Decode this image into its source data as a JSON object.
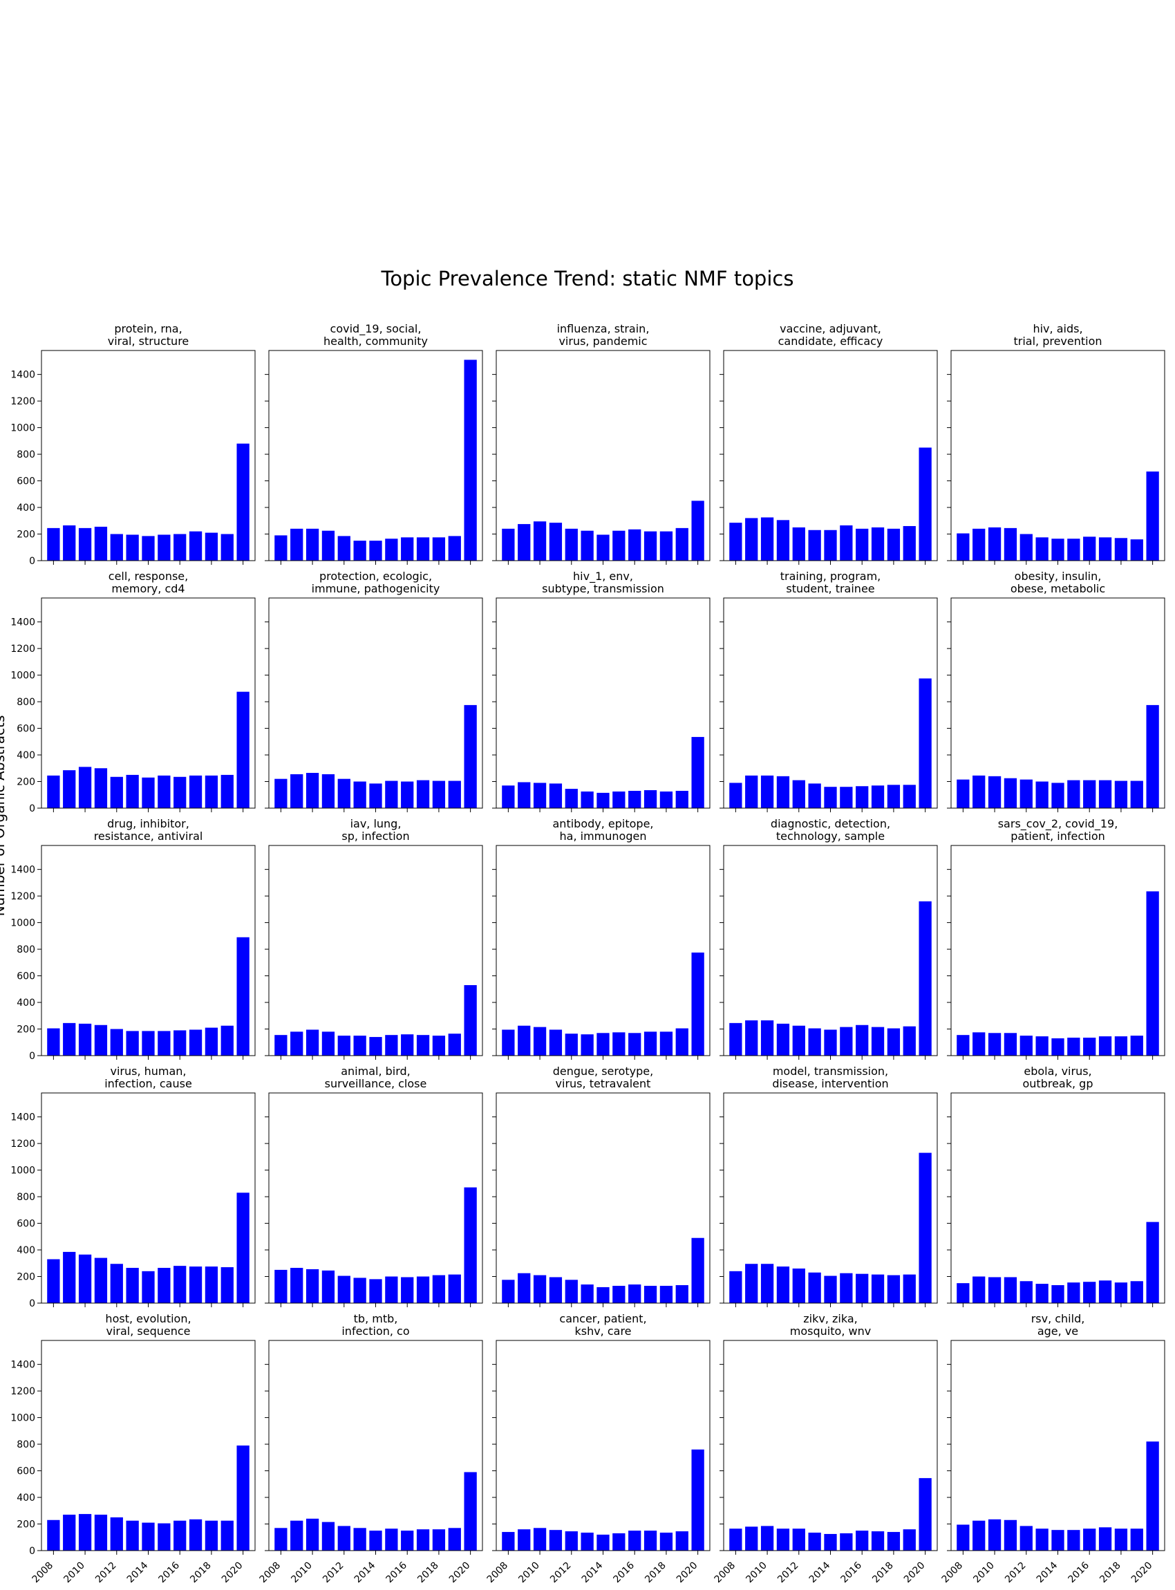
{
  "suptitle": "Topic Prevalence Trend: static NMF topics",
  "ylabel": "Number of Organic Abstracts",
  "bar_color": "#0000ff",
  "chart_data": [
    {
      "type": "bar",
      "title": "protein, rna,\nviral, structure",
      "x": [
        2008,
        2009,
        2010,
        2011,
        2012,
        2013,
        2014,
        2015,
        2016,
        2017,
        2018,
        2019,
        2020
      ],
      "values": [
        245,
        265,
        245,
        255,
        200,
        195,
        185,
        195,
        200,
        220,
        210,
        200,
        880
      ],
      "ylim": [
        0,
        1580
      ],
      "yticks": [
        0,
        200,
        400,
        600,
        800,
        1000,
        1200,
        1400
      ],
      "xticks": [
        2008,
        2010,
        2012,
        2014,
        2016,
        2018,
        2020
      ]
    },
    {
      "type": "bar",
      "title": "covid_19, social,\nhealth, community",
      "x": [
        2008,
        2009,
        2010,
        2011,
        2012,
        2013,
        2014,
        2015,
        2016,
        2017,
        2018,
        2019,
        2020
      ],
      "values": [
        190,
        240,
        240,
        225,
        185,
        150,
        150,
        165,
        175,
        175,
        175,
        185,
        1510
      ],
      "ylim": [
        0,
        1580
      ],
      "yticks": [
        0,
        200,
        400,
        600,
        800,
        1000,
        1200,
        1400
      ],
      "xticks": [
        2008,
        2010,
        2012,
        2014,
        2016,
        2018,
        2020
      ]
    },
    {
      "type": "bar",
      "title": "influenza, strain,\nvirus, pandemic",
      "x": [
        2008,
        2009,
        2010,
        2011,
        2012,
        2013,
        2014,
        2015,
        2016,
        2017,
        2018,
        2019,
        2020
      ],
      "values": [
        240,
        275,
        295,
        285,
        240,
        225,
        195,
        225,
        235,
        220,
        220,
        245,
        450
      ],
      "ylim": [
        0,
        1580
      ],
      "yticks": [
        0,
        200,
        400,
        600,
        800,
        1000,
        1200,
        1400
      ],
      "xticks": [
        2008,
        2010,
        2012,
        2014,
        2016,
        2018,
        2020
      ]
    },
    {
      "type": "bar",
      "title": "vaccine, adjuvant,\ncandidate, efficacy",
      "x": [
        2008,
        2009,
        2010,
        2011,
        2012,
        2013,
        2014,
        2015,
        2016,
        2017,
        2018,
        2019,
        2020
      ],
      "values": [
        285,
        320,
        325,
        305,
        250,
        230,
        230,
        265,
        240,
        250,
        240,
        260,
        850
      ],
      "ylim": [
        0,
        1580
      ],
      "yticks": [
        0,
        200,
        400,
        600,
        800,
        1000,
        1200,
        1400
      ],
      "xticks": [
        2008,
        2010,
        2012,
        2014,
        2016,
        2018,
        2020
      ]
    },
    {
      "type": "bar",
      "title": "hiv, aids,\ntrial, prevention",
      "x": [
        2008,
        2009,
        2010,
        2011,
        2012,
        2013,
        2014,
        2015,
        2016,
        2017,
        2018,
        2019,
        2020
      ],
      "values": [
        205,
        240,
        250,
        245,
        200,
        175,
        165,
        165,
        180,
        175,
        170,
        160,
        670
      ],
      "ylim": [
        0,
        1580
      ],
      "yticks": [
        0,
        200,
        400,
        600,
        800,
        1000,
        1200,
        1400
      ],
      "xticks": [
        2008,
        2010,
        2012,
        2014,
        2016,
        2018,
        2020
      ]
    },
    {
      "type": "bar",
      "title": "cell, response,\nmemory, cd4",
      "x": [
        2008,
        2009,
        2010,
        2011,
        2012,
        2013,
        2014,
        2015,
        2016,
        2017,
        2018,
        2019,
        2020
      ],
      "values": [
        245,
        285,
        310,
        300,
        235,
        250,
        230,
        245,
        235,
        245,
        245,
        250,
        875
      ],
      "ylim": [
        0,
        1580
      ],
      "yticks": [
        0,
        200,
        400,
        600,
        800,
        1000,
        1200,
        1400
      ],
      "xticks": [
        2008,
        2010,
        2012,
        2014,
        2016,
        2018,
        2020
      ]
    },
    {
      "type": "bar",
      "title": "protection, ecologic,\nimmune, pathogenicity",
      "x": [
        2008,
        2009,
        2010,
        2011,
        2012,
        2013,
        2014,
        2015,
        2016,
        2017,
        2018,
        2019,
        2020
      ],
      "values": [
        220,
        255,
        265,
        255,
        220,
        200,
        185,
        205,
        200,
        210,
        205,
        205,
        775
      ],
      "ylim": [
        0,
        1580
      ],
      "yticks": [
        0,
        200,
        400,
        600,
        800,
        1000,
        1200,
        1400
      ],
      "xticks": [
        2008,
        2010,
        2012,
        2014,
        2016,
        2018,
        2020
      ]
    },
    {
      "type": "bar",
      "title": "hiv_1, env,\nsubtype, transmission",
      "x": [
        2008,
        2009,
        2010,
        2011,
        2012,
        2013,
        2014,
        2015,
        2016,
        2017,
        2018,
        2019,
        2020
      ],
      "values": [
        170,
        195,
        190,
        185,
        145,
        125,
        115,
        125,
        130,
        135,
        125,
        130,
        535
      ],
      "ylim": [
        0,
        1580
      ],
      "yticks": [
        0,
        200,
        400,
        600,
        800,
        1000,
        1200,
        1400
      ],
      "xticks": [
        2008,
        2010,
        2012,
        2014,
        2016,
        2018,
        2020
      ]
    },
    {
      "type": "bar",
      "title": "training, program,\nstudent, trainee",
      "x": [
        2008,
        2009,
        2010,
        2011,
        2012,
        2013,
        2014,
        2015,
        2016,
        2017,
        2018,
        2019,
        2020
      ],
      "values": [
        190,
        245,
        245,
        240,
        210,
        185,
        160,
        160,
        165,
        170,
        175,
        175,
        975
      ],
      "ylim": [
        0,
        1580
      ],
      "yticks": [
        0,
        200,
        400,
        600,
        800,
        1000,
        1200,
        1400
      ],
      "xticks": [
        2008,
        2010,
        2012,
        2014,
        2016,
        2018,
        2020
      ]
    },
    {
      "type": "bar",
      "title": "obesity, insulin,\nobese, metabolic",
      "x": [
        2008,
        2009,
        2010,
        2011,
        2012,
        2013,
        2014,
        2015,
        2016,
        2017,
        2018,
        2019,
        2020
      ],
      "values": [
        215,
        245,
        240,
        225,
        215,
        200,
        190,
        210,
        210,
        210,
        205,
        205,
        775
      ],
      "ylim": [
        0,
        1580
      ],
      "yticks": [
        0,
        200,
        400,
        600,
        800,
        1000,
        1200,
        1400
      ],
      "xticks": [
        2008,
        2010,
        2012,
        2014,
        2016,
        2018,
        2020
      ]
    },
    {
      "type": "bar",
      "title": "drug, inhibitor,\nresistance, antiviral",
      "x": [
        2008,
        2009,
        2010,
        2011,
        2012,
        2013,
        2014,
        2015,
        2016,
        2017,
        2018,
        2019,
        2020
      ],
      "values": [
        205,
        245,
        240,
        230,
        200,
        185,
        185,
        185,
        190,
        195,
        210,
        225,
        890
      ],
      "ylim": [
        0,
        1580
      ],
      "yticks": [
        0,
        200,
        400,
        600,
        800,
        1000,
        1200,
        1400
      ],
      "xticks": [
        2008,
        2010,
        2012,
        2014,
        2016,
        2018,
        2020
      ]
    },
    {
      "type": "bar",
      "title": "iav, lung,\nsp, infection",
      "x": [
        2008,
        2009,
        2010,
        2011,
        2012,
        2013,
        2014,
        2015,
        2016,
        2017,
        2018,
        2019,
        2020
      ],
      "values": [
        155,
        180,
        195,
        180,
        150,
        150,
        140,
        155,
        160,
        155,
        150,
        165,
        530
      ],
      "ylim": [
        0,
        1580
      ],
      "yticks": [
        0,
        200,
        400,
        600,
        800,
        1000,
        1200,
        1400
      ],
      "xticks": [
        2008,
        2010,
        2012,
        2014,
        2016,
        2018,
        2020
      ]
    },
    {
      "type": "bar",
      "title": "antibody, epitope,\nha, immunogen",
      "x": [
        2008,
        2009,
        2010,
        2011,
        2012,
        2013,
        2014,
        2015,
        2016,
        2017,
        2018,
        2019,
        2020
      ],
      "values": [
        195,
        225,
        215,
        195,
        165,
        160,
        170,
        175,
        170,
        180,
        180,
        205,
        775
      ],
      "ylim": [
        0,
        1580
      ],
      "yticks": [
        0,
        200,
        400,
        600,
        800,
        1000,
        1200,
        1400
      ],
      "xticks": [
        2008,
        2010,
        2012,
        2014,
        2016,
        2018,
        2020
      ]
    },
    {
      "type": "bar",
      "title": "diagnostic, detection,\ntechnology, sample",
      "x": [
        2008,
        2009,
        2010,
        2011,
        2012,
        2013,
        2014,
        2015,
        2016,
        2017,
        2018,
        2019,
        2020
      ],
      "values": [
        245,
        265,
        265,
        240,
        225,
        205,
        195,
        215,
        230,
        215,
        205,
        220,
        1160
      ],
      "ylim": [
        0,
        1580
      ],
      "yticks": [
        0,
        200,
        400,
        600,
        800,
        1000,
        1200,
        1400
      ],
      "xticks": [
        2008,
        2010,
        2012,
        2014,
        2016,
        2018,
        2020
      ]
    },
    {
      "type": "bar",
      "title": "sars_cov_2, covid_19,\npatient, infection",
      "x": [
        2008,
        2009,
        2010,
        2011,
        2012,
        2013,
        2014,
        2015,
        2016,
        2017,
        2018,
        2019,
        2020
      ],
      "values": [
        155,
        175,
        170,
        170,
        150,
        145,
        130,
        135,
        135,
        145,
        145,
        150,
        1235
      ],
      "ylim": [
        0,
        1580
      ],
      "yticks": [
        0,
        200,
        400,
        600,
        800,
        1000,
        1200,
        1400
      ],
      "xticks": [
        2008,
        2010,
        2012,
        2014,
        2016,
        2018,
        2020
      ]
    },
    {
      "type": "bar",
      "title": "virus, human,\ninfection, cause",
      "x": [
        2008,
        2009,
        2010,
        2011,
        2012,
        2013,
        2014,
        2015,
        2016,
        2017,
        2018,
        2019,
        2020
      ],
      "values": [
        330,
        385,
        365,
        340,
        295,
        265,
        240,
        265,
        280,
        275,
        275,
        270,
        830
      ],
      "ylim": [
        0,
        1580
      ],
      "yticks": [
        0,
        200,
        400,
        600,
        800,
        1000,
        1200,
        1400
      ],
      "xticks": [
        2008,
        2010,
        2012,
        2014,
        2016,
        2018,
        2020
      ]
    },
    {
      "type": "bar",
      "title": "animal, bird,\nsurveillance, close",
      "x": [
        2008,
        2009,
        2010,
        2011,
        2012,
        2013,
        2014,
        2015,
        2016,
        2017,
        2018,
        2019,
        2020
      ],
      "values": [
        250,
        265,
        255,
        245,
        205,
        190,
        180,
        200,
        195,
        200,
        210,
        215,
        870
      ],
      "ylim": [
        0,
        1580
      ],
      "yticks": [
        0,
        200,
        400,
        600,
        800,
        1000,
        1200,
        1400
      ],
      "xticks": [
        2008,
        2010,
        2012,
        2014,
        2016,
        2018,
        2020
      ]
    },
    {
      "type": "bar",
      "title": "dengue, serotype,\nvirus, tetravalent",
      "x": [
        2008,
        2009,
        2010,
        2011,
        2012,
        2013,
        2014,
        2015,
        2016,
        2017,
        2018,
        2019,
        2020
      ],
      "values": [
        175,
        225,
        210,
        195,
        175,
        140,
        120,
        130,
        140,
        130,
        130,
        135,
        490
      ],
      "ylim": [
        0,
        1580
      ],
      "yticks": [
        0,
        200,
        400,
        600,
        800,
        1000,
        1200,
        1400
      ],
      "xticks": [
        2008,
        2010,
        2012,
        2014,
        2016,
        2018,
        2020
      ]
    },
    {
      "type": "bar",
      "title": "model, transmission,\ndisease, intervention",
      "x": [
        2008,
        2009,
        2010,
        2011,
        2012,
        2013,
        2014,
        2015,
        2016,
        2017,
        2018,
        2019,
        2020
      ],
      "values": [
        240,
        295,
        295,
        275,
        260,
        230,
        205,
        225,
        220,
        215,
        210,
        215,
        1130
      ],
      "ylim": [
        0,
        1580
      ],
      "yticks": [
        0,
        200,
        400,
        600,
        800,
        1000,
        1200,
        1400
      ],
      "xticks": [
        2008,
        2010,
        2012,
        2014,
        2016,
        2018,
        2020
      ]
    },
    {
      "type": "bar",
      "title": "ebola, virus,\noutbreak, gp",
      "x": [
        2008,
        2009,
        2010,
        2011,
        2012,
        2013,
        2014,
        2015,
        2016,
        2017,
        2018,
        2019,
        2020
      ],
      "values": [
        150,
        200,
        195,
        195,
        165,
        145,
        135,
        155,
        160,
        170,
        155,
        165,
        610
      ],
      "ylim": [
        0,
        1580
      ],
      "yticks": [
        0,
        200,
        400,
        600,
        800,
        1000,
        1200,
        1400
      ],
      "xticks": [
        2008,
        2010,
        2012,
        2014,
        2016,
        2018,
        2020
      ]
    },
    {
      "type": "bar",
      "title": "host, evolution,\nviral, sequence",
      "x": [
        2008,
        2009,
        2010,
        2011,
        2012,
        2013,
        2014,
        2015,
        2016,
        2017,
        2018,
        2019,
        2020
      ],
      "values": [
        230,
        270,
        275,
        270,
        250,
        225,
        210,
        205,
        225,
        235,
        225,
        225,
        790
      ],
      "ylim": [
        0,
        1580
      ],
      "yticks": [
        0,
        200,
        400,
        600,
        800,
        1000,
        1200,
        1400
      ],
      "xticks": [
        2008,
        2010,
        2012,
        2014,
        2016,
        2018,
        2020
      ]
    },
    {
      "type": "bar",
      "title": "tb, mtb,\ninfection, co",
      "x": [
        2008,
        2009,
        2010,
        2011,
        2012,
        2013,
        2014,
        2015,
        2016,
        2017,
        2018,
        2019,
        2020
      ],
      "values": [
        170,
        225,
        240,
        215,
        185,
        170,
        150,
        165,
        150,
        160,
        160,
        170,
        590
      ],
      "ylim": [
        0,
        1580
      ],
      "yticks": [
        0,
        200,
        400,
        600,
        800,
        1000,
        1200,
        1400
      ],
      "xticks": [
        2008,
        2010,
        2012,
        2014,
        2016,
        2018,
        2020
      ]
    },
    {
      "type": "bar",
      "title": "cancer, patient,\nkshv, care",
      "x": [
        2008,
        2009,
        2010,
        2011,
        2012,
        2013,
        2014,
        2015,
        2016,
        2017,
        2018,
        2019,
        2020
      ],
      "values": [
        140,
        160,
        170,
        155,
        145,
        135,
        120,
        130,
        150,
        150,
        135,
        145,
        760
      ],
      "ylim": [
        0,
        1580
      ],
      "yticks": [
        0,
        200,
        400,
        600,
        800,
        1000,
        1200,
        1400
      ],
      "xticks": [
        2008,
        2010,
        2012,
        2014,
        2016,
        2018,
        2020
      ]
    },
    {
      "type": "bar",
      "title": "zikv, zika,\nmosquito, wnv",
      "x": [
        2008,
        2009,
        2010,
        2011,
        2012,
        2013,
        2014,
        2015,
        2016,
        2017,
        2018,
        2019,
        2020
      ],
      "values": [
        165,
        180,
        185,
        165,
        165,
        135,
        125,
        130,
        150,
        145,
        140,
        160,
        545
      ],
      "ylim": [
        0,
        1580
      ],
      "yticks": [
        0,
        200,
        400,
        600,
        800,
        1000,
        1200,
        1400
      ],
      "xticks": [
        2008,
        2010,
        2012,
        2014,
        2016,
        2018,
        2020
      ]
    },
    {
      "type": "bar",
      "title": "rsv, child,\nage, ve",
      "x": [
        2008,
        2009,
        2010,
        2011,
        2012,
        2013,
        2014,
        2015,
        2016,
        2017,
        2018,
        2019,
        2020
      ],
      "values": [
        195,
        225,
        235,
        230,
        185,
        165,
        155,
        155,
        165,
        175,
        165,
        165,
        820
      ],
      "ylim": [
        0,
        1580
      ],
      "yticks": [
        0,
        200,
        400,
        600,
        800,
        1000,
        1200,
        1400
      ],
      "xticks": [
        2008,
        2010,
        2012,
        2014,
        2016,
        2018,
        2020
      ]
    }
  ]
}
